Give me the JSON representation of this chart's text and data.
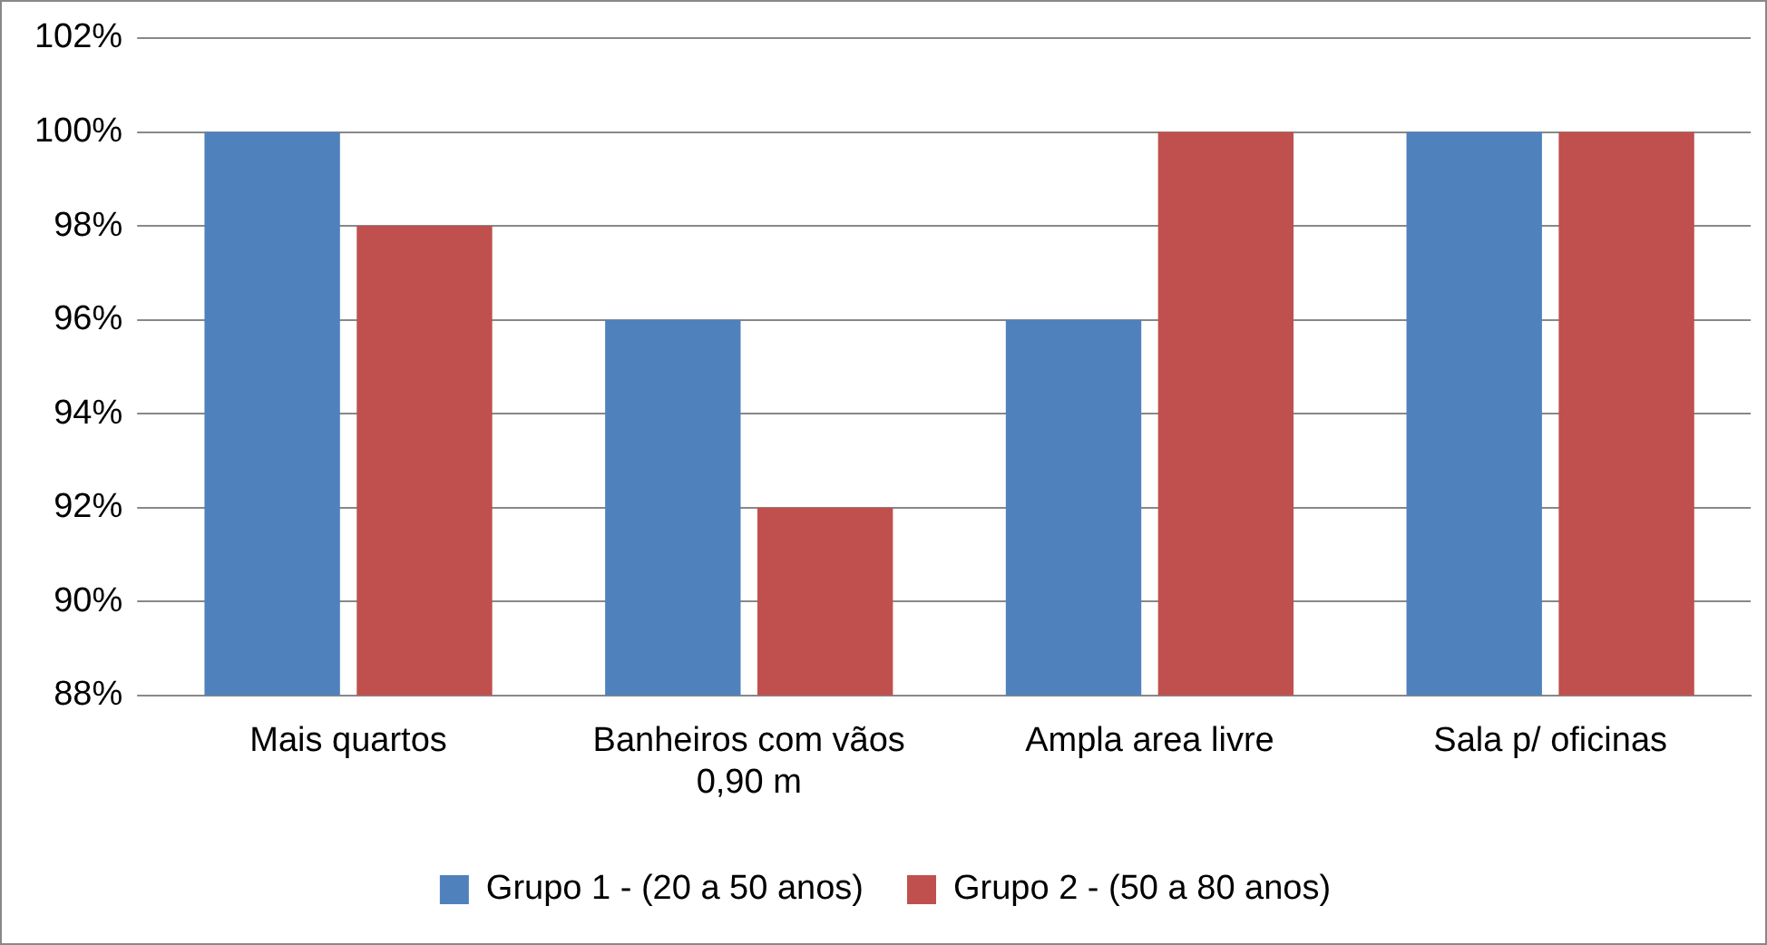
{
  "chart_data": {
    "type": "bar",
    "categories": [
      "Mais quartos",
      "Banheiros com vãos 0,90 m",
      "Ampla area livre",
      "Sala p/ oficinas"
    ],
    "series": [
      {
        "name": "Grupo 1 - (20 a 50 anos)",
        "color": "#4f81bd",
        "values": [
          100,
          96,
          96,
          100
        ]
      },
      {
        "name": "Grupo 2 - (50 a 80 anos)",
        "color": "#c0504d",
        "values": [
          98,
          92,
          100,
          100
        ]
      }
    ],
    "ylim": [
      88,
      102
    ],
    "yticks": [
      {
        "value": 88,
        "label": "88%"
      },
      {
        "value": 90,
        "label": "90%"
      },
      {
        "value": 92,
        "label": "92%"
      },
      {
        "value": 94,
        "label": "94%"
      },
      {
        "value": 96,
        "label": "96%"
      },
      {
        "value": 98,
        "label": "98%"
      },
      {
        "value": 100,
        "label": "100%"
      },
      {
        "value": 102,
        "label": "102%"
      }
    ],
    "grid": "y",
    "legend": "bottom"
  }
}
